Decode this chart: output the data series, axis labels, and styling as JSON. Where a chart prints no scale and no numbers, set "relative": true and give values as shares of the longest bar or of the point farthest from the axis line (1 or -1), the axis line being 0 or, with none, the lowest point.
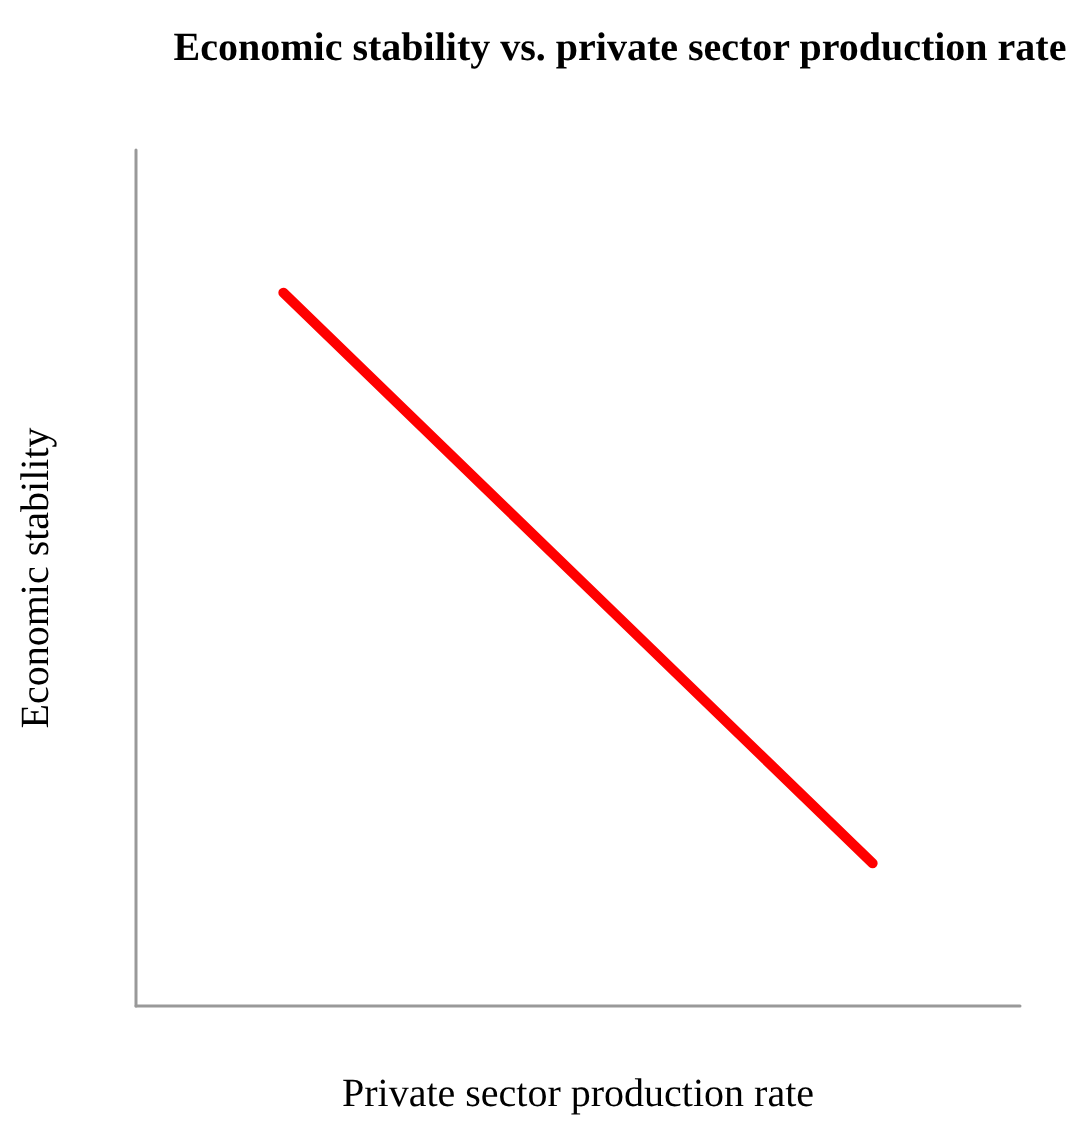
{
  "chart_data": {
    "type": "line",
    "title": "Economic stability vs. private sector production rate",
    "xlabel": "Private sector production rate",
    "ylabel": "Economic stability",
    "relative": true,
    "categories": [
      null,
      null,
      null,
      null,
      null,
      null,
      null
    ],
    "series": [
      {
        "color": "#ff0000",
        "values": [
          null,
          1,
          null,
          null,
          null,
          0.2,
          null
        ]
      }
    ],
    "grid": false,
    "marker": "none",
    "line_style": "solid"
  }
}
